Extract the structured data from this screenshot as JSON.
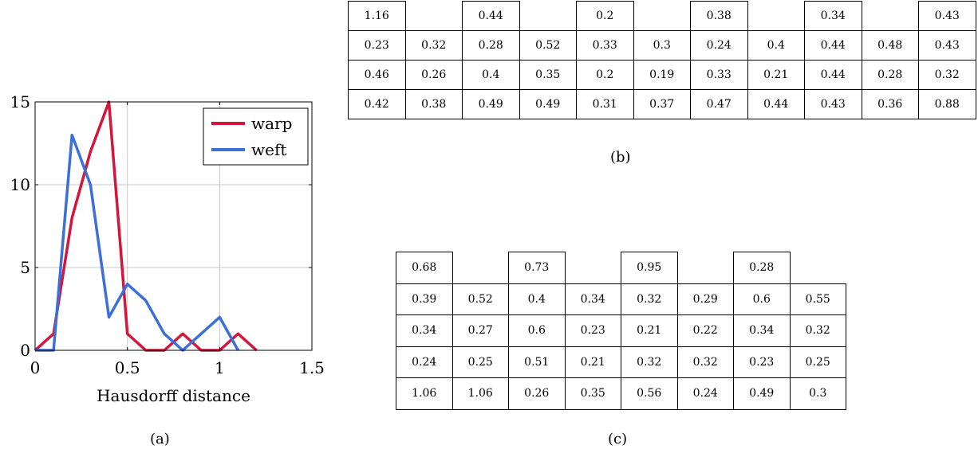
{
  "chart_data": {
    "type": "line",
    "xlabel": "Hausdorff distance",
    "ylabel": "",
    "xlim": [
      0,
      1.5
    ],
    "ylim": [
      0,
      15
    ],
    "xticks": [
      "0",
      "0.5",
      "1",
      "1.5"
    ],
    "yticks": [
      "0",
      "5",
      "10",
      "15"
    ],
    "grid": true,
    "legend_position": "top-right",
    "series": [
      {
        "name": "warp",
        "color": "#d4163c",
        "x": [
          0,
          0.1,
          0.2,
          0.3,
          0.4,
          0.5,
          0.6,
          0.7,
          0.8,
          0.9,
          1.0,
          1.1,
          1.2
        ],
        "y": [
          0,
          1,
          8,
          12,
          15,
          1,
          0,
          0,
          1,
          0,
          0,
          1,
          0
        ]
      },
      {
        "name": "weft",
        "color": "#3d6fd9",
        "x": [
          0,
          0.1,
          0.2,
          0.3,
          0.4,
          0.5,
          0.6,
          0.7,
          0.8,
          0.9,
          1.0,
          1.1
        ],
        "y": [
          0,
          0,
          13,
          10,
          2,
          4,
          3,
          1,
          0,
          1,
          2,
          0
        ]
      }
    ]
  },
  "table_b": {
    "rows": [
      [
        "1.16",
        "",
        "0.44",
        "",
        "0.2",
        "",
        "0.38",
        "",
        "0.34",
        "",
        "0.43"
      ],
      [
        "0.23",
        "0.32",
        "0.28",
        "0.52",
        "0.33",
        "0.3",
        "0.24",
        "0.4",
        "0.44",
        "0.48",
        "0.43"
      ],
      [
        "0.46",
        "0.26",
        "0.4",
        "0.35",
        "0.2",
        "0.19",
        "0.33",
        "0.21",
        "0.44",
        "0.28",
        "0.32"
      ],
      [
        "0.42",
        "0.38",
        "0.49",
        "0.49",
        "0.31",
        "0.37",
        "0.47",
        "0.44",
        "0.43",
        "0.36",
        "0.88"
      ]
    ]
  },
  "table_c": {
    "rows": [
      [
        "0.68",
        "",
        "0.73",
        "",
        "0.95",
        "",
        "0.28",
        ""
      ],
      [
        "0.39",
        "0.52",
        "0.4",
        "0.34",
        "0.32",
        "0.29",
        "0.6",
        "0.55"
      ],
      [
        "0.34",
        "0.27",
        "0.6",
        "0.23",
        "0.21",
        "0.22",
        "0.34",
        "0.32"
      ],
      [
        "0.24",
        "0.25",
        "0.51",
        "0.21",
        "0.32",
        "0.32",
        "0.23",
        "0.25"
      ],
      [
        "1.06",
        "1.06",
        "0.26",
        "0.35",
        "0.56",
        "0.24",
        "0.49",
        "0.3"
      ]
    ]
  },
  "captions": {
    "a": "(a)",
    "b": "(b)",
    "c": "(c)"
  }
}
